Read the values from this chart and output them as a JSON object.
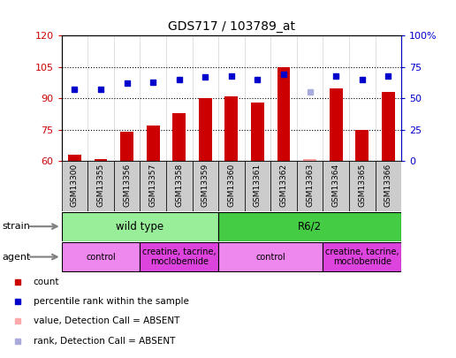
{
  "title": "GDS717 / 103789_at",
  "samples": [
    "GSM13300",
    "GSM13355",
    "GSM13356",
    "GSM13357",
    "GSM13358",
    "GSM13359",
    "GSM13360",
    "GSM13361",
    "GSM13362",
    "GSM13363",
    "GSM13364",
    "GSM13365",
    "GSM13366"
  ],
  "counts": [
    63,
    61,
    74,
    77,
    83,
    90,
    91,
    88,
    105,
    61,
    95,
    75,
    93
  ],
  "absent_count": [
    false,
    false,
    false,
    false,
    false,
    false,
    false,
    false,
    false,
    true,
    false,
    false,
    false
  ],
  "percentile_ranks": [
    57,
    57,
    62,
    63,
    65,
    67,
    68,
    65,
    69,
    55,
    68,
    65,
    68
  ],
  "absent_rank": [
    false,
    false,
    false,
    false,
    false,
    false,
    false,
    false,
    false,
    true,
    false,
    false,
    false
  ],
  "ylim_left": [
    60,
    120
  ],
  "ylim_right": [
    0,
    100
  ],
  "yticks_left": [
    60,
    75,
    90,
    105,
    120
  ],
  "yticks_right": [
    0,
    25,
    50,
    75,
    100
  ],
  "ytick_labels_right": [
    "0",
    "25",
    "50",
    "75",
    "100%"
  ],
  "bar_color": "#CC0000",
  "bar_color_absent": "#FF9999",
  "rank_color": "#0000CC",
  "rank_color_absent": "#AAAADD",
  "plot_bg_color": "#FFFFFF",
  "xtick_bg_color": "#CCCCCC",
  "strain_wt_color": "#99EE99",
  "strain_r62_color": "#44CC44",
  "agent_control_color": "#EE88EE",
  "agent_treat_color": "#DD44DD",
  "legend_bg": "#FFFFFF"
}
